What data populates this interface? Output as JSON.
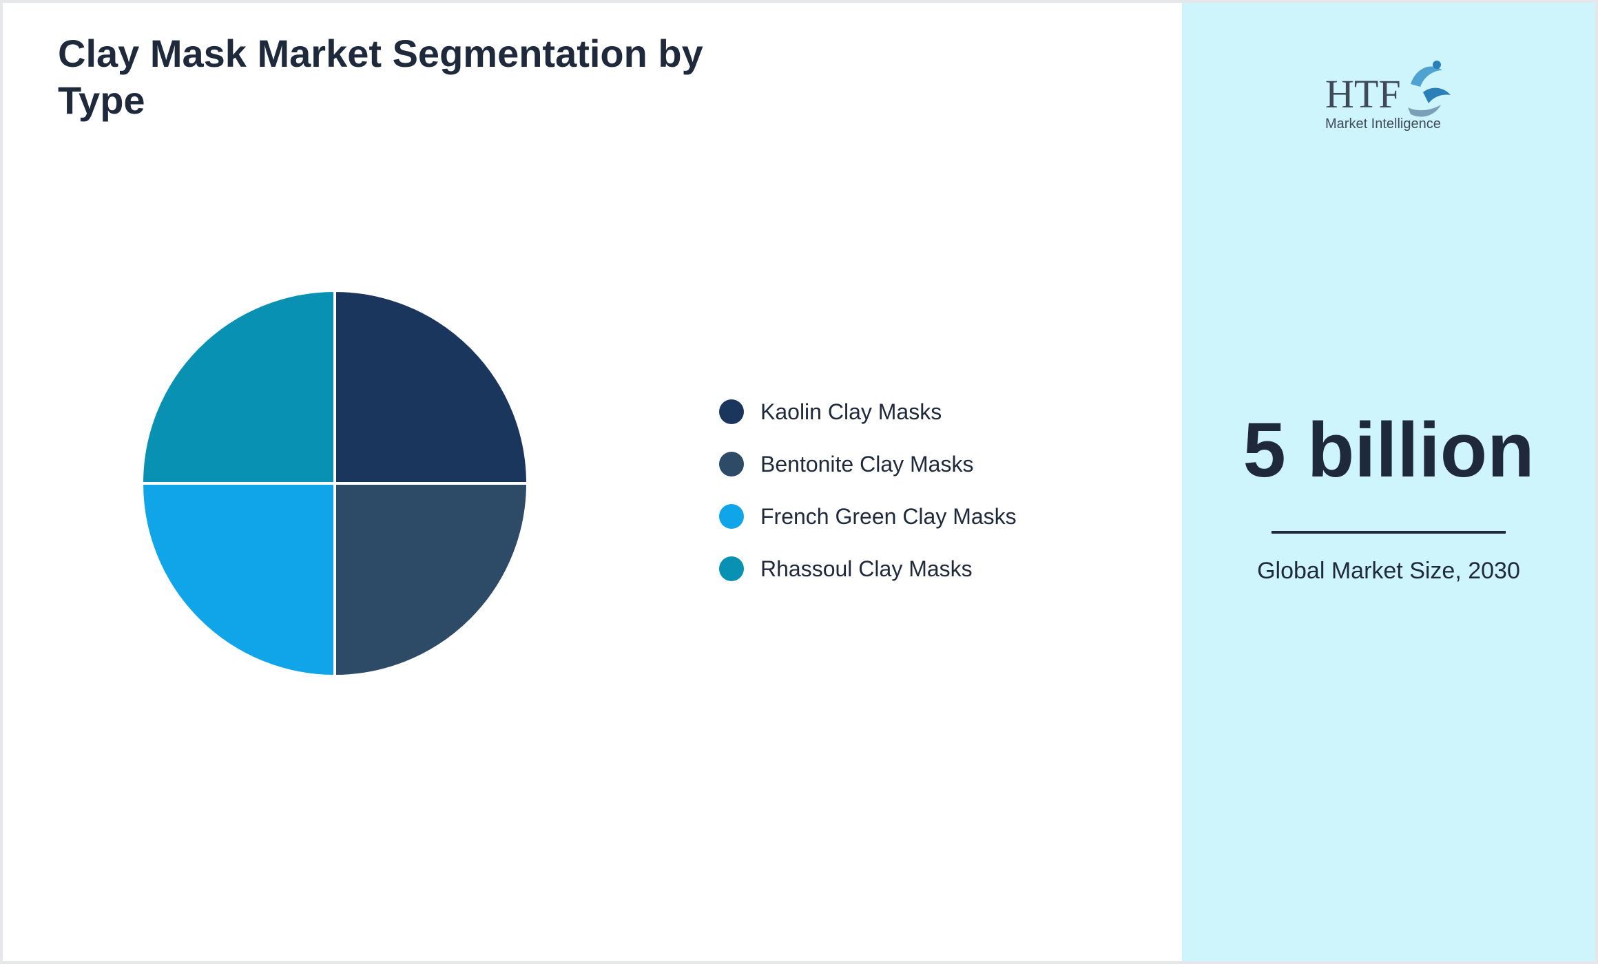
{
  "chart": {
    "title": "Clay Mask Market Segmentation by Type"
  },
  "chart_data": {
    "type": "pie",
    "title": "Clay Mask Market Segmentation by Type",
    "categories": [
      "Kaolin Clay Masks",
      "Bentonite Clay Masks",
      "French Green Clay Masks",
      "Rhassoul Clay Masks"
    ],
    "values": [
      25,
      25,
      25,
      25
    ],
    "colors": [
      "#1b365d",
      "#2d4b66",
      "#10a5e8",
      "#0891b2"
    ],
    "legend_placement": "right"
  },
  "summary": {
    "value": "5 billion",
    "caption": "Global Market Size, 2030"
  },
  "logo": {
    "text_main": "HTF",
    "text_sub": "Market Intelligence",
    "icon": "htf-logo-icon"
  }
}
